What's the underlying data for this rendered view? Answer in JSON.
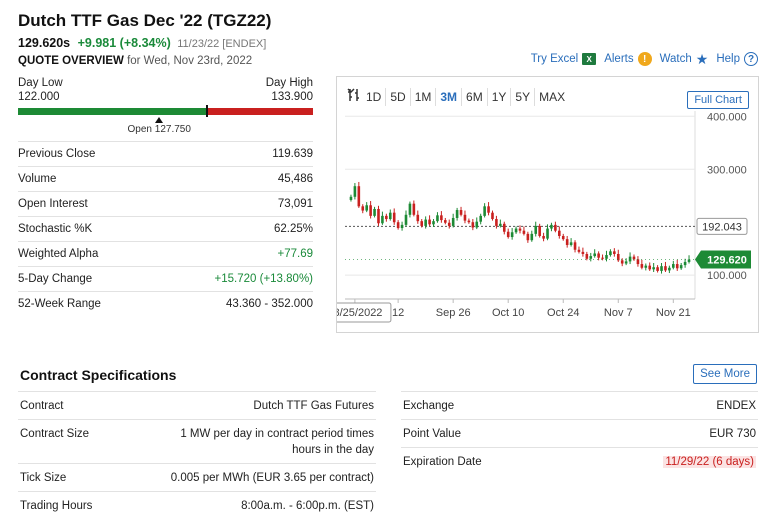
{
  "header": {
    "title": "Dutch TTF Gas Dec '22 (TGZ22)",
    "last": "129.620s",
    "change": "+9.981 (+8.34%)",
    "meta": "11/23/22 [ENDEX]",
    "overview_label": "QUOTE OVERVIEW",
    "overview_for": "for Wed, Nov 23rd, 2022"
  },
  "toplinks": {
    "excel": "Try Excel",
    "excel_icon": "X",
    "alerts": "Alerts",
    "alerts_icon": "!",
    "watch": "Watch",
    "watch_icon": "★",
    "help": "Help",
    "help_icon": "?"
  },
  "day_range": {
    "low_label": "Day Low",
    "low_value": "122.000",
    "high_label": "Day High",
    "high_value": "133.900",
    "low": 122.0,
    "high": 133.9,
    "last": 129.62,
    "open": 127.75,
    "open_label": "Open 127.750"
  },
  "stats": [
    {
      "label": "Previous Close",
      "value": "119.639",
      "positive": false
    },
    {
      "label": "Volume",
      "value": "45,486",
      "positive": false
    },
    {
      "label": "Open Interest",
      "value": "73,091",
      "positive": false
    },
    {
      "label": "Stochastic %K",
      "value": "62.25%",
      "positive": false
    },
    {
      "label": "Weighted Alpha",
      "value": "+77.69",
      "positive": true
    },
    {
      "label": "5-Day Change",
      "value": "+15.720 (+13.80%)",
      "positive": true
    },
    {
      "label": "52-Week Range",
      "value": "43.360 - 352.000",
      "positive": false
    }
  ],
  "chart_toolbar": {
    "timeframes": [
      "1D",
      "5D",
      "1M",
      "3M",
      "6M",
      "1Y",
      "5Y",
      "MAX"
    ],
    "active": "3M",
    "full_chart": "Full Chart"
  },
  "chart_data": {
    "type": "candlestick",
    "x_tick_labels": [
      "08/25/2022",
      "12",
      "Sep 26",
      "Oct 10",
      "Oct 24",
      "Nov 7",
      "Nov 21"
    ],
    "y_tick_labels": [
      "400.000",
      "300.000",
      "100.000"
    ],
    "y_ticks": [
      400,
      300,
      100
    ],
    "ylim": [
      55,
      410
    ],
    "reference_line": {
      "label": "192.043",
      "value": 192.043
    },
    "last_price": {
      "label": "129.620",
      "value": 129.62
    },
    "closes": [
      248,
      268,
      230,
      222,
      232,
      212,
      225,
      198,
      212,
      206,
      218,
      200,
      189,
      195,
      214,
      235,
      214,
      202,
      193,
      205,
      196,
      202,
      213,
      204,
      199,
      193,
      208,
      223,
      214,
      203,
      200,
      190,
      201,
      212,
      230,
      218,
      206,
      193,
      197,
      182,
      172,
      181,
      188,
      184,
      178,
      166,
      178,
      193,
      174,
      169,
      188,
      195,
      184,
      174,
      168,
      157,
      162,
      148,
      144,
      140,
      131,
      136,
      141,
      133,
      131,
      138,
      145,
      140,
      128,
      122,
      126,
      135,
      130,
      121,
      114,
      118,
      111,
      115,
      108,
      117,
      109,
      114,
      121,
      113,
      119,
      125,
      129.6
    ]
  },
  "specs": {
    "title": "Contract Specifications",
    "see_more": "See More",
    "left": [
      {
        "label": "Contract",
        "value": "Dutch TTF Gas Futures"
      },
      {
        "label": "Contract Size",
        "value": "1 MW per day in contract period times hours in the day"
      },
      {
        "label": "Tick Size",
        "value": "0.005 per MWh (EUR 3.65 per contract)"
      },
      {
        "label": "Trading Hours",
        "value": "8:00a.m. - 6:00p.m. (EST)"
      }
    ],
    "right": [
      {
        "label": "Exchange",
        "value": "ENDEX"
      },
      {
        "label": "Point Value",
        "value": "EUR 730"
      },
      {
        "label": "Expiration Date",
        "value": "11/29/22 (6 days)"
      }
    ]
  }
}
